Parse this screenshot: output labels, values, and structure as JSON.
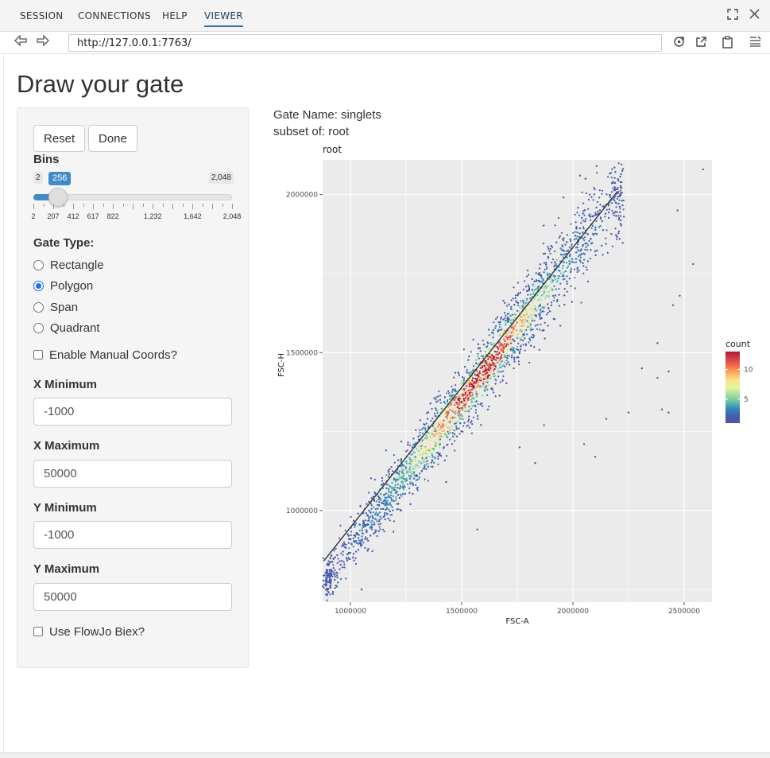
{
  "tabs": [
    {
      "label": "SESSION",
      "active": false
    },
    {
      "label": "CONNECTIONS",
      "active": false
    },
    {
      "label": "HELP",
      "active": false
    },
    {
      "label": "VIEWER",
      "active": true
    }
  ],
  "topbar_icons": [
    "fullscreen-icon",
    "close-icon"
  ],
  "address": {
    "url": "http://127.0.0.1:7763/",
    "icons": [
      "back-arrow-icon",
      "forward-arrow-icon",
      "refresh-icon",
      "open-external-icon",
      "clipboard-icon",
      "menu-icon"
    ]
  },
  "page": {
    "title": "Draw your gate"
  },
  "panel": {
    "reset_label": "Reset",
    "done_label": "Done",
    "bins": {
      "label": "Bins",
      "min": 2,
      "max": 2048,
      "value": 256,
      "min_label": "2",
      "max_label": "2,048",
      "value_label": "256",
      "ticks": [
        "2",
        "207",
        "412",
        "617",
        "822",
        "1,232",
        "1,642",
        "2,048"
      ],
      "tick_values": [
        2,
        207,
        412,
        617,
        822,
        1232,
        1642,
        2048
      ]
    },
    "gate_type": {
      "label": "Gate Type:",
      "options": [
        "Rectangle",
        "Polygon",
        "Span",
        "Quadrant"
      ],
      "selected": "Polygon"
    },
    "manual_coords_label": "Enable Manual Coords?",
    "manual_coords_checked": false,
    "x_min": {
      "label": "X Minimum",
      "value": "-1000"
    },
    "x_max": {
      "label": "X Maximum",
      "value": "50000"
    },
    "y_min": {
      "label": "Y Minimum",
      "value": "-1000"
    },
    "y_max": {
      "label": "Y Maximum",
      "value": "50000"
    },
    "flowjo_label": "Use FlowJo Biex?",
    "flowjo_checked": false
  },
  "gate_info": {
    "name_line": "Gate Name: singlets",
    "subset_line": "subset of: root"
  },
  "colors": {
    "accent": "#428bca",
    "radio": "#1a73e8",
    "plot_bg": "#ebebeb"
  },
  "chart_data": {
    "type": "scatter",
    "title": "root",
    "xlabel": "FSC-A",
    "ylabel": "FSC-H",
    "xlim": [
      875000,
      2625000
    ],
    "ylim": [
      710000,
      2110000
    ],
    "xticks": [
      1000000,
      1500000,
      2000000,
      2500000
    ],
    "xtick_labels": [
      "1000000",
      "1500000",
      "2000000",
      "2500000"
    ],
    "yticks": [
      1000000,
      1500000,
      2000000
    ],
    "ytick_labels": [
      "1000000",
      "1500000",
      "2000000"
    ],
    "grid": true,
    "density_trend": {
      "x": [
        900000,
        2200000
      ],
      "y": [
        790000,
        2000000
      ]
    },
    "gate_line": {
      "x": [
        880000,
        2200000
      ],
      "y": [
        840000,
        2010000
      ]
    },
    "outliers": [
      [
        2585000,
        2080000
      ],
      [
        2640000,
        1870000
      ],
      [
        2470000,
        1950000
      ],
      [
        2540000,
        1780000
      ],
      [
        2450000,
        1650000
      ],
      [
        2430000,
        1440000
      ],
      [
        2380000,
        1420000
      ],
      [
        2480000,
        1680000
      ],
      [
        2400000,
        1320000
      ],
      [
        2430000,
        1310000
      ],
      [
        2380000,
        1530000
      ],
      [
        2310000,
        1450000
      ],
      [
        2250000,
        1310000
      ],
      [
        2150000,
        1290000
      ],
      [
        2100000,
        1170000
      ],
      [
        2050000,
        1210000
      ],
      [
        1870000,
        1270000
      ],
      [
        1830000,
        1150000
      ],
      [
        1760000,
        1200000
      ],
      [
        1570000,
        940000
      ],
      [
        1430000,
        1090000
      ],
      [
        1270000,
        1020000
      ],
      [
        1050000,
        750000
      ],
      [
        1010000,
        690000
      ]
    ],
    "legend": {
      "title": "count",
      "position": "right",
      "ticks": [
        5,
        10
      ],
      "tick_labels": [
        "5",
        "10"
      ],
      "range": [
        1,
        13
      ]
    }
  }
}
